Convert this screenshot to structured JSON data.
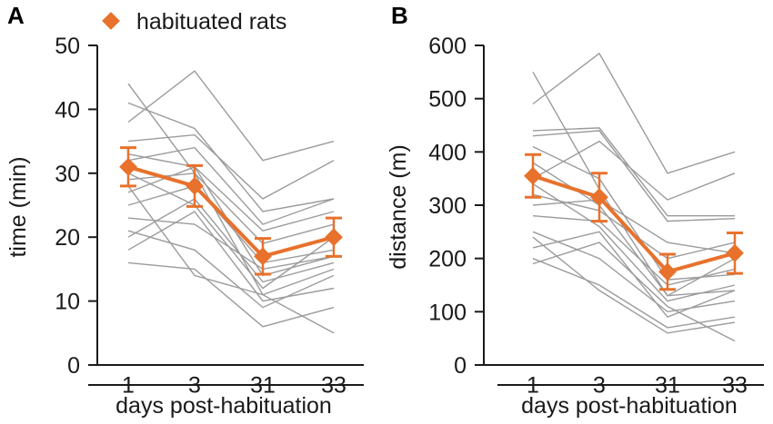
{
  "figure": {
    "legend_label": "habituated rats",
    "colors": {
      "mean": "#e8712c",
      "individual": "#9b9b9b",
      "axis": "#1a1a1a"
    }
  },
  "chart_data": [
    {
      "panel_label": "A",
      "type": "line",
      "xlabel": "days post-habituation",
      "ylabel": "time (min)",
      "categories": [
        "1",
        "3",
        "31",
        "33"
      ],
      "ylim": [
        0,
        50
      ],
      "yticks": [
        "0",
        "10",
        "20",
        "30",
        "40",
        "50"
      ],
      "mean": {
        "name": "habituated rats",
        "values": [
          31,
          28,
          17,
          20
        ],
        "errors": [
          3,
          3.2,
          2.8,
          3
        ]
      },
      "individuals": [
        [
          44,
          30,
          11,
          15
        ],
        [
          41,
          37,
          24,
          26
        ],
        [
          38,
          46,
          32,
          35
        ],
        [
          35,
          36,
          26,
          32
        ],
        [
          33,
          31,
          14,
          17
        ],
        [
          32,
          34,
          22,
          26
        ],
        [
          30,
          25,
          12,
          20
        ],
        [
          29,
          30,
          19,
          22
        ],
        [
          27,
          31,
          21,
          24
        ],
        [
          25,
          28,
          16,
          18
        ],
        [
          23,
          22,
          15,
          17
        ],
        [
          21,
          18,
          9,
          14
        ],
        [
          20,
          26,
          13,
          16
        ],
        [
          18,
          24,
          10,
          12
        ],
        [
          16,
          15,
          6,
          9
        ],
        [
          28,
          14,
          11,
          5
        ]
      ]
    },
    {
      "panel_label": "B",
      "type": "line",
      "xlabel": "days post-habituation",
      "ylabel": "distance (m)",
      "categories": [
        "1",
        "3",
        "31",
        "33"
      ],
      "ylim": [
        0,
        600
      ],
      "yticks": [
        "0",
        "100",
        "200",
        "300",
        "400",
        "500",
        "600"
      ],
      "mean": {
        "name": "habituated rats",
        "values": [
          355,
          315,
          175,
          210
        ],
        "errors": [
          40,
          45,
          33,
          38
        ]
      },
      "individuals": [
        [
          550,
          330,
          130,
          140
        ],
        [
          490,
          585,
          360,
          400
        ],
        [
          440,
          445,
          280,
          280
        ],
        [
          430,
          440,
          270,
          275
        ],
        [
          410,
          350,
          160,
          170
        ],
        [
          380,
          300,
          130,
          200
        ],
        [
          350,
          420,
          310,
          360
        ],
        [
          340,
          260,
          120,
          150
        ],
        [
          320,
          290,
          200,
          230
        ],
        [
          300,
          310,
          230,
          210
        ],
        [
          280,
          270,
          150,
          180
        ],
        [
          250,
          200,
          100,
          120
        ],
        [
          220,
          250,
          90,
          140
        ],
        [
          200,
          150,
          70,
          90
        ],
        [
          190,
          230,
          110,
          45
        ],
        [
          240,
          140,
          60,
          80
        ]
      ]
    }
  ]
}
